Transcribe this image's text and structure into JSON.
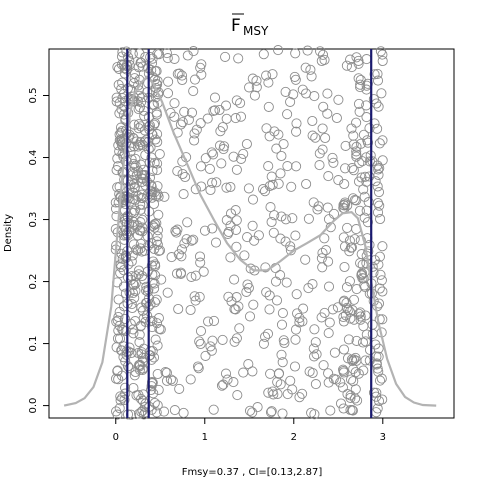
{
  "chart_data": {
    "type": "scatter",
    "title": "F",
    "title_subscript": "MSY",
    "title_overline": true,
    "xlabel": "Fmsy=0.37 , CI=[0.13,2.87]",
    "ylabel": "Density",
    "xlim": [
      -0.75,
      3.8
    ],
    "ylim": [
      -0.02,
      0.575
    ],
    "xticks": [
      0,
      1,
      2,
      3
    ],
    "yticks": [
      0.0,
      0.1,
      0.2,
      0.3,
      0.4,
      0.5
    ],
    "ytick_labels": [
      "0.0",
      "0.1",
      "0.2",
      "0.3",
      "0.4",
      "0.5"
    ],
    "grid": false,
    "vertical_lines": [
      {
        "name": "Fmsy",
        "x": 0.37,
        "color": "#1a1a6e"
      },
      {
        "name": "CI lower",
        "x": 0.13,
        "color": "#1a1a6e"
      },
      {
        "name": "CI upper",
        "x": 2.87,
        "color": "#1a1a6e"
      }
    ],
    "density_curve": {
      "color": "#b3b3b3",
      "x": [
        -0.58,
        -0.45,
        -0.35,
        -0.25,
        -0.15,
        -0.05,
        0.02,
        0.08,
        0.14,
        0.2,
        0.28,
        0.35,
        0.42,
        0.52,
        0.65,
        0.8,
        0.95,
        1.1,
        1.25,
        1.4,
        1.55,
        1.7,
        1.85,
        2.0,
        2.15,
        2.3,
        2.45,
        2.55,
        2.65,
        2.72,
        2.8,
        2.87,
        2.95,
        3.05,
        3.15,
        3.25,
        3.35,
        3.45,
        3.6
      ],
      "y": [
        0.0,
        0.004,
        0.012,
        0.03,
        0.07,
        0.16,
        0.28,
        0.38,
        0.455,
        0.5,
        0.52,
        0.53,
        0.52,
        0.49,
        0.44,
        0.39,
        0.34,
        0.3,
        0.262,
        0.235,
        0.218,
        0.218,
        0.233,
        0.25,
        0.262,
        0.275,
        0.298,
        0.31,
        0.312,
        0.302,
        0.26,
        0.2,
        0.135,
        0.075,
        0.035,
        0.014,
        0.005,
        0.001,
        0.0
      ]
    },
    "points_color": "#8c8c8c",
    "points_count": 1000,
    "points_x_range": [
      0.0,
      3.0
    ],
    "points_y_range": [
      -0.015,
      0.575
    ]
  }
}
